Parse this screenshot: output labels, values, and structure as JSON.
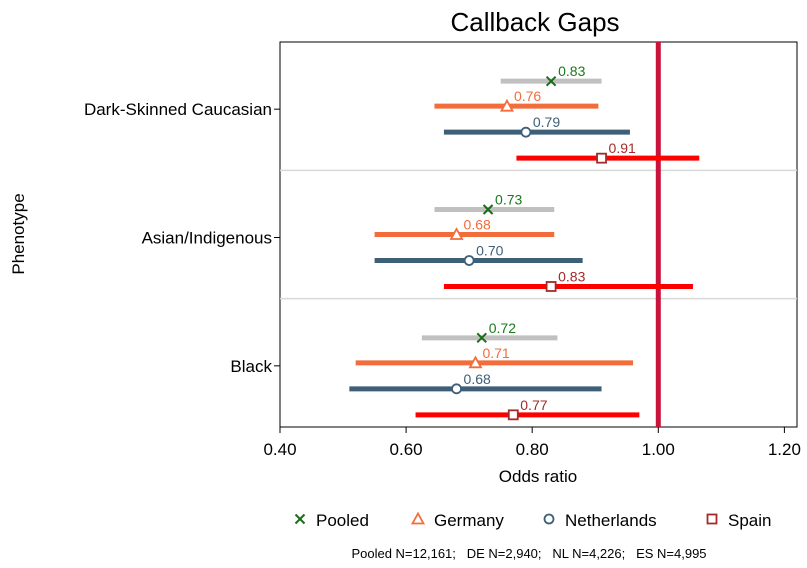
{
  "chart_data": {
    "type": "forest",
    "title": "Callback Gaps",
    "xlabel": "Odds ratio",
    "ylabel": "Phenotype",
    "xlim": [
      0.4,
      1.22
    ],
    "xticks": [
      0.4,
      0.6,
      0.8,
      1.0,
      1.2
    ],
    "xtick_labels": [
      "0.40",
      "0.60",
      "0.80",
      "1.00",
      "1.20"
    ],
    "reference_line": 1.0,
    "reference_color": "#c8143c",
    "categories": [
      "Dark-Skinned Caucasian",
      "Asian/Indigenous",
      "Black"
    ],
    "series": [
      {
        "name": "Pooled",
        "color": "#c0c0c0",
        "label_color": "#1a7a1a",
        "marker": "x",
        "marker_color": "#1a6b1a",
        "points": [
          {
            "category": "Dark-Skinned Caucasian",
            "estimate": 0.83,
            "label": "0.83",
            "ci": [
              0.75,
              0.91
            ]
          },
          {
            "category": "Asian/Indigenous",
            "estimate": 0.73,
            "label": "0.73",
            "ci": [
              0.645,
              0.835
            ]
          },
          {
            "category": "Black",
            "estimate": 0.72,
            "label": "0.72",
            "ci": [
              0.625,
              0.84
            ]
          }
        ]
      },
      {
        "name": "Germany",
        "color": "#f26c3c",
        "label_color": "#f26c3c",
        "marker": "triangle",
        "marker_color": "#f26c3c",
        "points": [
          {
            "category": "Dark-Skinned Caucasian",
            "estimate": 0.76,
            "label": "0.76",
            "ci": [
              0.645,
              0.905
            ]
          },
          {
            "category": "Asian/Indigenous",
            "estimate": 0.68,
            "label": "0.68",
            "ci": [
              0.55,
              0.835
            ]
          },
          {
            "category": "Black",
            "estimate": 0.71,
            "label": "0.71",
            "ci": [
              0.52,
              0.96
            ]
          }
        ]
      },
      {
        "name": "Netherlands",
        "color": "#3d5f78",
        "label_color": "#3d5f78",
        "marker": "circle",
        "marker_color": "#3d5f78",
        "points": [
          {
            "category": "Dark-Skinned Caucasian",
            "estimate": 0.79,
            "label": "0.79",
            "ci": [
              0.66,
              0.955
            ]
          },
          {
            "category": "Asian/Indigenous",
            "estimate": 0.7,
            "label": "0.70",
            "ci": [
              0.55,
              0.88
            ]
          },
          {
            "category": "Black",
            "estimate": 0.68,
            "label": "0.68",
            "ci": [
              0.51,
              0.91
            ]
          }
        ]
      },
      {
        "name": "Spain",
        "color": "#ff0000",
        "label_color": "#a52a2a",
        "marker": "square",
        "marker_color": "#a52a2a",
        "points": [
          {
            "category": "Dark-Skinned Caucasian",
            "estimate": 0.91,
            "label": "0.91",
            "ci": [
              0.775,
              1.065
            ]
          },
          {
            "category": "Asian/Indigenous",
            "estimate": 0.83,
            "label": "0.83",
            "ci": [
              0.66,
              1.055
            ]
          },
          {
            "category": "Black",
            "estimate": 0.77,
            "label": "0.77",
            "ci": [
              0.615,
              0.97
            ]
          }
        ]
      }
    ],
    "legend": {
      "placement": "bottom",
      "entries": [
        "Pooled",
        "Germany",
        "Netherlands",
        "Spain"
      ]
    },
    "note": "Pooled N=12,161;   DE N=2,940;   NL N=4,226;   ES N=4,995"
  }
}
